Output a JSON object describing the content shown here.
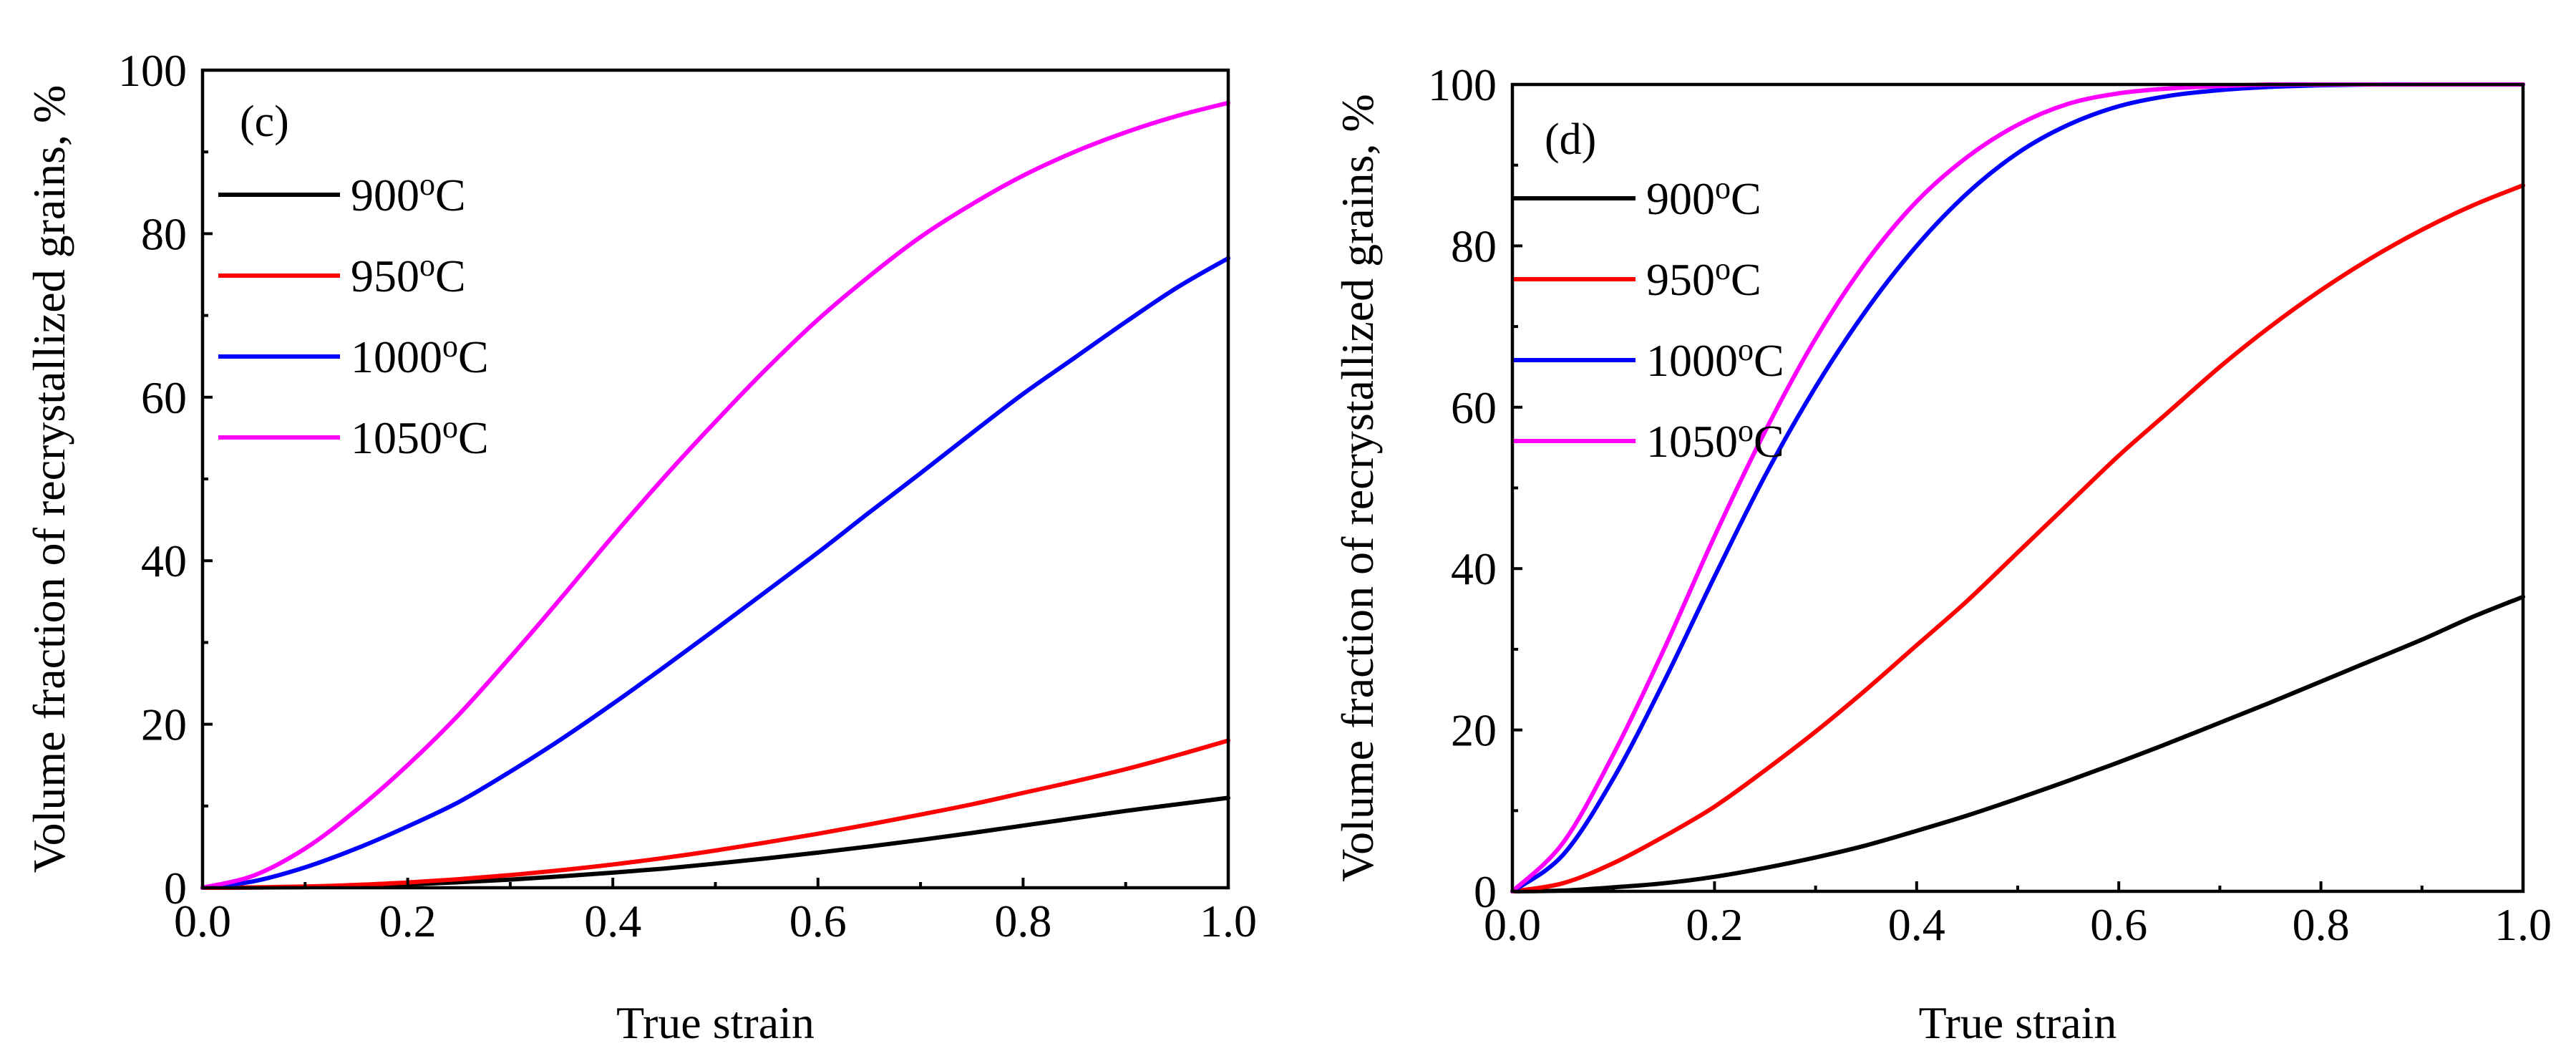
{
  "chart_data": [
    {
      "type": "line",
      "panel_label": "(c)",
      "xlabel": "True strain",
      "ylabel": "Volume fraction of recrystallized grains, %",
      "xlim": [
        0,
        1.0
      ],
      "ylim": [
        0,
        100
      ],
      "xticks": [
        "0.0",
        "0.2",
        "0.4",
        "0.6",
        "0.8",
        "1.0"
      ],
      "yticks": [
        "0",
        "20",
        "40",
        "60",
        "80",
        "100"
      ],
      "legend_position": "upper-left",
      "x": [
        0,
        0.05,
        0.1,
        0.15,
        0.2,
        0.25,
        0.3,
        0.35,
        0.4,
        0.45,
        0.5,
        0.55,
        0.6,
        0.65,
        0.7,
        0.75,
        0.8,
        0.85,
        0.9,
        0.95,
        1.0
      ],
      "series": [
        {
          "name": "900",
          "unit": "oC",
          "color": "#000000",
          "values": [
            0,
            0.02,
            0.08,
            0.2,
            0.4,
            0.67,
            1.0,
            1.4,
            1.85,
            2.35,
            2.95,
            3.6,
            4.3,
            5.05,
            5.85,
            6.7,
            7.6,
            8.5,
            9.4,
            10.2,
            11.0
          ]
        },
        {
          "name": "950",
          "unit": "oC",
          "color": "#ff0000",
          "values": [
            0,
            0.04,
            0.15,
            0.35,
            0.65,
            1.05,
            1.55,
            2.15,
            2.85,
            3.65,
            4.55,
            5.55,
            6.6,
            7.75,
            8.95,
            10.2,
            11.6,
            13.0,
            14.5,
            16.2,
            18.0
          ]
        },
        {
          "name": "1000",
          "unit": "oC",
          "color": "#0000ff",
          "values": [
            0,
            0.8,
            2.5,
            4.8,
            7.5,
            10.5,
            14.2,
            18.2,
            22.5,
            27.0,
            31.6,
            36.3,
            41.0,
            45.9,
            50.7,
            55.6,
            60.4,
            64.8,
            69.2,
            73.4,
            77.0
          ]
        },
        {
          "name": "1050",
          "unit": "oC",
          "color": "#ff00ff",
          "values": [
            0,
            1.5,
            4.8,
            9.5,
            15.0,
            21.2,
            28.2,
            35.5,
            43.0,
            50.2,
            57.0,
            63.5,
            69.5,
            74.8,
            79.6,
            83.6,
            87.1,
            90.0,
            92.4,
            94.4,
            96.0
          ]
        }
      ]
    },
    {
      "type": "line",
      "panel_label": "(d)",
      "xlabel": "True strain",
      "ylabel": "Volume fraction of recrystallized grains, %",
      "xlim": [
        0,
        1.0
      ],
      "ylim": [
        0,
        100
      ],
      "xticks": [
        "0.0",
        "0.2",
        "0.4",
        "0.6",
        "0.8",
        "1.0"
      ],
      "yticks": [
        "0",
        "20",
        "40",
        "60",
        "80",
        "100"
      ],
      "legend_position": "upper-left",
      "x": [
        0,
        0.05,
        0.1,
        0.15,
        0.2,
        0.25,
        0.3,
        0.35,
        0.4,
        0.45,
        0.5,
        0.55,
        0.6,
        0.65,
        0.7,
        0.75,
        0.8,
        0.85,
        0.9,
        0.95,
        1.0
      ],
      "series": [
        {
          "name": "900",
          "unit": "oC",
          "color": "#000000",
          "values": [
            0,
            0.1,
            0.5,
            1.0,
            1.8,
            2.9,
            4.2,
            5.7,
            7.5,
            9.4,
            11.5,
            13.7,
            16.0,
            18.4,
            20.9,
            23.4,
            26.0,
            28.6,
            31.2,
            34.0,
            36.5
          ]
        },
        {
          "name": "950",
          "unit": "oC",
          "color": "#ff0000",
          "values": [
            0,
            1.0,
            3.5,
            6.8,
            10.5,
            15.0,
            19.8,
            25.0,
            30.5,
            36.0,
            42.0,
            48.0,
            54.0,
            59.5,
            65.0,
            70.0,
            74.5,
            78.5,
            82.0,
            85.0,
            87.5
          ]
        },
        {
          "name": "1000",
          "unit": "oC",
          "color": "#0000ff",
          "values": [
            0,
            4.5,
            14.0,
            26.0,
            39.0,
            51.5,
            62.5,
            72.0,
            80.0,
            86.5,
            91.5,
            95.0,
            97.3,
            98.6,
            99.3,
            99.7,
            99.9,
            100,
            100,
            100,
            100
          ]
        },
        {
          "name": "1050",
          "unit": "oC",
          "color": "#ff00ff",
          "values": [
            0,
            6.0,
            17.0,
            30.0,
            44.0,
            57.0,
            68.5,
            78.0,
            85.5,
            91.0,
            95.0,
            97.6,
            98.9,
            99.5,
            99.8,
            100,
            100,
            100,
            100,
            100,
            100
          ]
        }
      ]
    }
  ]
}
